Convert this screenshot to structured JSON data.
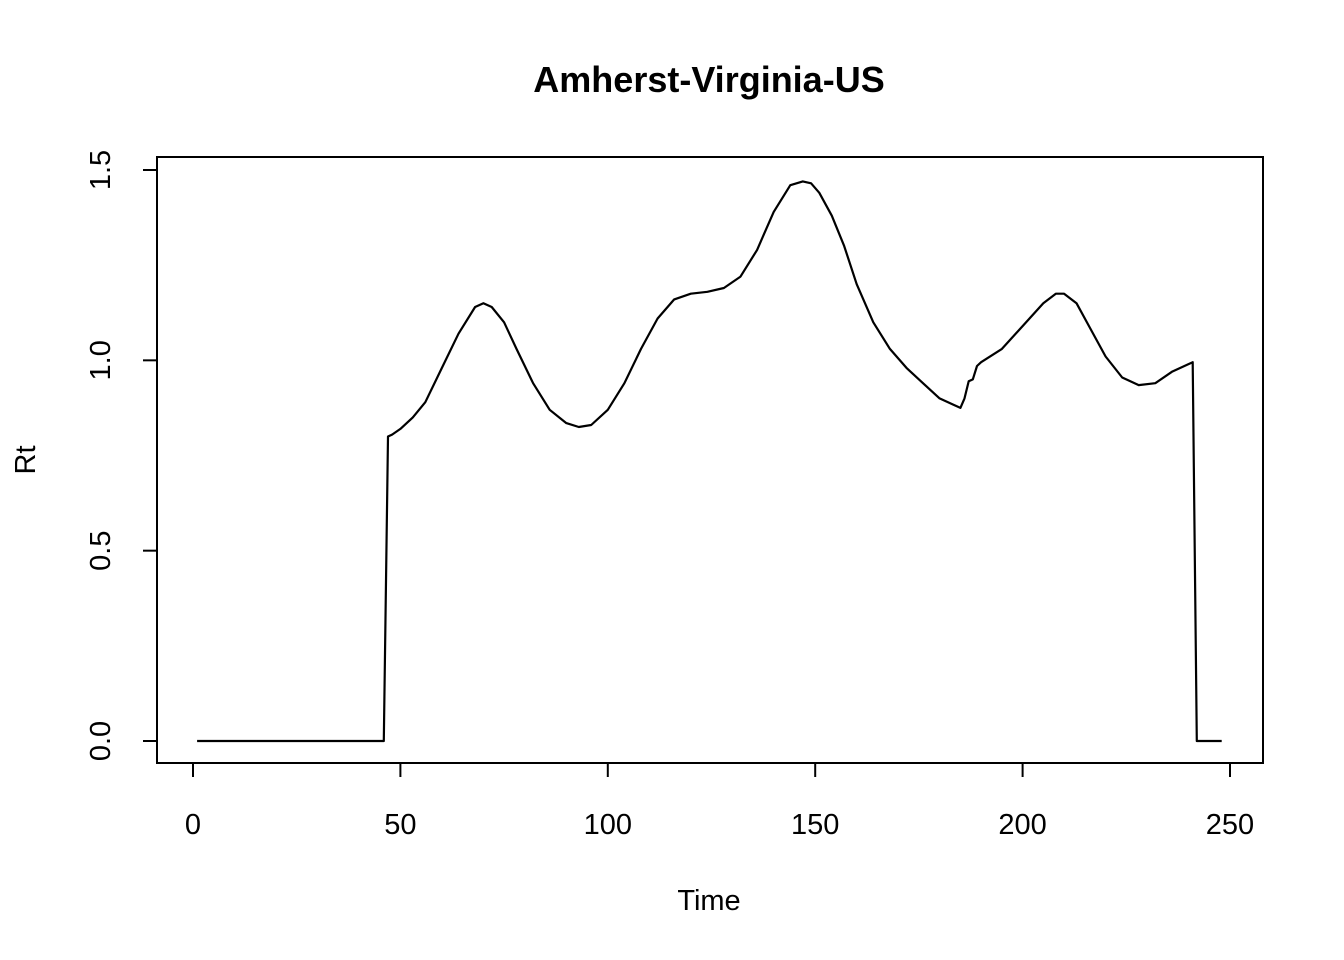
{
  "chart_data": {
    "type": "line",
    "title": "Amherst-Virginia-US",
    "xlabel": "Time",
    "ylabel": "Rt",
    "xlim": [
      0,
      250
    ],
    "ylim": [
      0,
      1.5
    ],
    "x_ticks": [
      0,
      50,
      100,
      150,
      200,
      250
    ],
    "y_ticks": [
      0.0,
      0.5,
      1.0,
      1.5
    ],
    "x_tick_labels": [
      "0",
      "50",
      "100",
      "150",
      "200",
      "250"
    ],
    "y_tick_labels": [
      "0.0",
      "0.5",
      "1.0",
      "1.5"
    ],
    "grid": false,
    "legend": "none",
    "line_color": "#000000",
    "series": [
      {
        "x": [
          1,
          46,
          47,
          48,
          50,
          53,
          56,
          60,
          64,
          68,
          70,
          72,
          75,
          78,
          82,
          86,
          90,
          93,
          96,
          100,
          104,
          108,
          112,
          116,
          120,
          124,
          128,
          132,
          136,
          140,
          144,
          147,
          149,
          151,
          154,
          157,
          160,
          164,
          168,
          172,
          176,
          180,
          183,
          185,
          186,
          187,
          188,
          189,
          190,
          195,
          200,
          205,
          208,
          210,
          213,
          216,
          220,
          224,
          228,
          232,
          236,
          240,
          241,
          242,
          248
        ],
        "y": [
          0,
          0,
          0.8,
          0.805,
          0.82,
          0.85,
          0.89,
          0.98,
          1.07,
          1.14,
          1.15,
          1.14,
          1.1,
          1.03,
          0.94,
          0.87,
          0.835,
          0.825,
          0.83,
          0.87,
          0.94,
          1.03,
          1.11,
          1.16,
          1.175,
          1.18,
          1.19,
          1.22,
          1.29,
          1.39,
          1.46,
          1.47,
          1.465,
          1.44,
          1.38,
          1.3,
          1.2,
          1.1,
          1.03,
          0.98,
          0.94,
          0.9,
          0.885,
          0.875,
          0.9,
          0.945,
          0.95,
          0.985,
          0.995,
          1.03,
          1.09,
          1.15,
          1.175,
          1.175,
          1.15,
          1.09,
          1.01,
          0.955,
          0.935,
          0.94,
          0.97,
          0.99,
          0.995,
          0,
          0
        ]
      }
    ]
  }
}
